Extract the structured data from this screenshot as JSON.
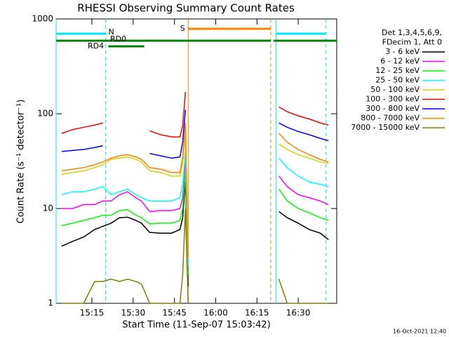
{
  "chart_data": {
    "type": "line",
    "title": "RHESSI Observing Summary Count Rates",
    "xlabel": "Start Time (11-Sep-07 15:03:42)",
    "ylabel": "Count Rate (s⁻¹ detector⁻¹)",
    "legend_header": [
      "Det 1,3,4,5,6,9,",
      "FDecim 1, Att 0"
    ],
    "footer": "16-Oct-2021 12:40",
    "log_y": true,
    "xlim": [
      "15:02",
      "16:44"
    ],
    "xticks": [
      "15:15",
      "15:30",
      "15:45",
      "16:00",
      "16:15",
      "16:30"
    ],
    "ylim": [
      1,
      1000
    ],
    "yticks": [
      1,
      10,
      100,
      1000
    ],
    "legend": "right",
    "x": [
      "15:04",
      "15:08",
      "15:12",
      "15:16",
      "15:19",
      "15:22",
      "15:25",
      "15:28",
      "15:31",
      "15:33",
      "15:36",
      "15:40",
      "15:44",
      "15:47",
      "15:48",
      "15:49",
      "15:50",
      "15:55",
      "16:23",
      "16:26",
      "16:30",
      "16:34",
      "16:38",
      "16:41"
    ],
    "series": [
      {
        "name": "3 - 6 keV",
        "color": "#000000",
        "values": [
          4,
          4.5,
          5,
          6,
          6.5,
          7,
          8,
          8.1,
          7.5,
          7,
          5.6,
          5.5,
          5.5,
          6,
          8,
          20,
          1.5,
          null,
          9.3,
          8,
          7,
          6,
          5.5,
          4.7
        ]
      },
      {
        "name": "6 - 12 keV",
        "color": "#ff00ff",
        "values": [
          10,
          10,
          11,
          11,
          12,
          12,
          14,
          15,
          13,
          12,
          9.3,
          9.5,
          9.5,
          10,
          13,
          30,
          2.2,
          null,
          22,
          17,
          14,
          13,
          12,
          11
        ]
      },
      {
        "name": "12 - 25 keV",
        "color": "#00ff00",
        "values": [
          6.6,
          7,
          7.5,
          8,
          8.5,
          8.5,
          9.5,
          9.7,
          8.5,
          8,
          6.9,
          7,
          7,
          7.5,
          10,
          25,
          2,
          null,
          16,
          12,
          10,
          9,
          8,
          7.5
        ]
      },
      {
        "name": "25 - 50 keV",
        "color": "#00ffff",
        "values": [
          14,
          15,
          15,
          16,
          17,
          14,
          15,
          16,
          14,
          13,
          12,
          12,
          12,
          13,
          18,
          40,
          2.5,
          null,
          34,
          27,
          22,
          19,
          18,
          17
        ]
      },
      {
        "name": "50 - 100 keV",
        "color": "#d4d400",
        "values": [
          23,
          24,
          25,
          27,
          29,
          33,
          34,
          35,
          33,
          31,
          25,
          24,
          22,
          22,
          30,
          60,
          3,
          null,
          48,
          42,
          37,
          34,
          31,
          30
        ]
      },
      {
        "name": "100 - 300 keV",
        "color": "#ff0000",
        "values": [
          62,
          68,
          72,
          76,
          80,
          null,
          null,
          null,
          null,
          null,
          66,
          60,
          57,
          57,
          75,
          170,
          null,
          null,
          118,
          105,
          95,
          88,
          80,
          76
        ]
      },
      {
        "name": "300 - 800 keV",
        "color": "#0000ff",
        "values": [
          40,
          41,
          42,
          44,
          46,
          null,
          null,
          null,
          null,
          null,
          38,
          36,
          34,
          35,
          50,
          110,
          null,
          null,
          80,
          72,
          65,
          60,
          55,
          52
        ]
      },
      {
        "name": "800 - 7000 keV",
        "color": "#ff8000",
        "values": [
          25,
          26,
          27,
          29,
          31,
          34,
          36,
          37,
          35,
          33,
          27,
          26,
          24,
          24,
          35,
          80,
          3,
          null,
          62,
          50,
          42,
          37,
          33,
          31
        ]
      },
      {
        "name": "7000 - 15000 keV",
        "color": "#808000",
        "values": [
          1,
          1,
          1,
          1.7,
          1.7,
          1.8,
          1.7,
          1.8,
          1.7,
          1.6,
          1,
          1,
          1,
          1,
          2,
          10,
          1,
          null,
          1.8,
          1,
          1,
          1,
          1,
          1
        ]
      }
    ],
    "flags": [
      {
        "label": "N",
        "color": "#00e5ff",
        "vlines": true,
        "spans": [
          [
            "15:02",
            "15:20"
          ],
          [
            "16:22",
            "16:40"
          ]
        ]
      },
      {
        "label": "S",
        "color": "#ff8000",
        "vlines": true,
        "spans": [
          [
            "15:50",
            "16:20"
          ]
        ]
      },
      {
        "label": "RD0",
        "color": "#008000",
        "vlines": false,
        "spans": [
          [
            "15:02",
            "16:20"
          ],
          [
            "16:21",
            "16:44"
          ]
        ]
      },
      {
        "label": "RD4",
        "color": "#008000",
        "vlines": false,
        "spans": [
          [
            "15:21",
            "15:34"
          ]
        ]
      }
    ]
  }
}
